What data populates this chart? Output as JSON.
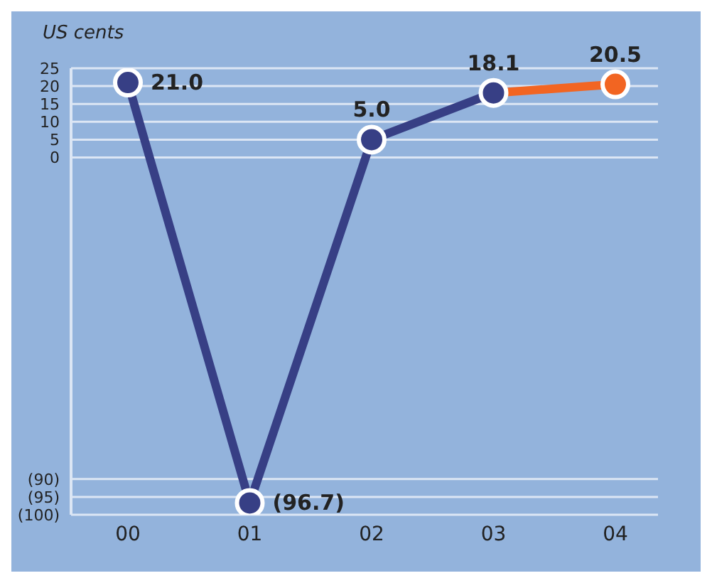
{
  "chart_data": {
    "type": "line",
    "ylabel": "US cents",
    "categories": [
      "00",
      "01",
      "02",
      "03",
      "04"
    ],
    "series": [
      {
        "color": "#373f85",
        "values": [
          21.0,
          -96.7,
          5.0,
          18.1,
          null
        ],
        "value_labels": [
          "21.0",
          "(96.7)",
          "5.0",
          "18.1",
          null
        ]
      },
      {
        "color": "#f26522",
        "values": [
          null,
          null,
          null,
          18.1,
          20.5
        ],
        "value_labels": [
          null,
          null,
          null,
          null,
          "20.5"
        ]
      }
    ],
    "ylim": [
      -100,
      25
    ],
    "yticks": [
      {
        "value": -100,
        "label": "(100)"
      },
      {
        "value": -95,
        "label": "(95)"
      },
      {
        "value": -90,
        "label": "(90)"
      },
      0,
      5,
      10,
      15,
      20,
      25
    ],
    "grid": "y",
    "marker": "circle",
    "line_style": "solid",
    "legend": false
  }
}
